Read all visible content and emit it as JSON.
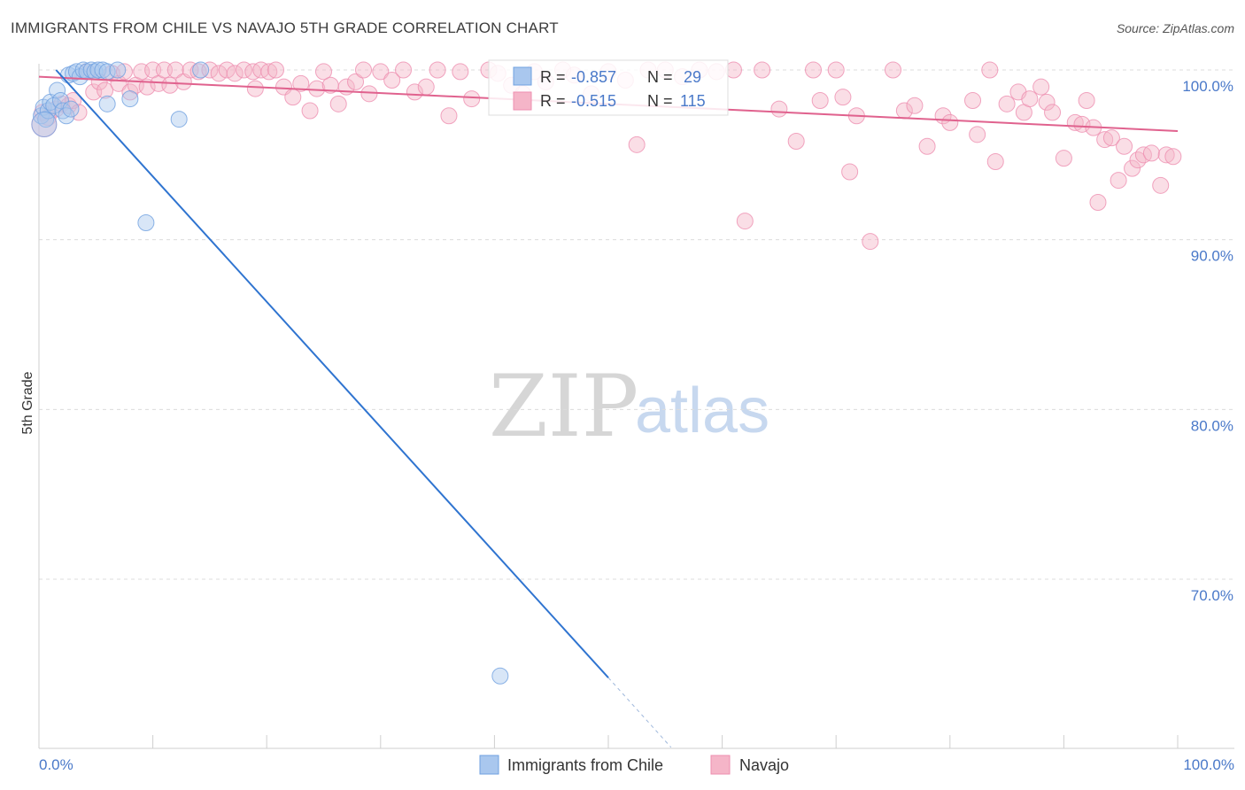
{
  "header": {
    "title": "IMMIGRANTS FROM CHILE VS NAVAJO 5TH GRADE CORRELATION CHART",
    "source": "Source: ZipAtlas.com"
  },
  "watermark": {
    "zip": "ZIP",
    "atlas": "atlas"
  },
  "legend": {
    "rows": [
      {
        "r_label": "R = ",
        "r_value": "-0.857",
        "n_label": "N = ",
        "n_value": "29",
        "color": "#a9c7ee"
      },
      {
        "r_label": "R = ",
        "r_value": "-0.515",
        "n_label": "N = ",
        "n_value": "115",
        "color": "#f5b5c8"
      }
    ]
  },
  "bottom_legend": [
    {
      "label": "Immigrants from Chile",
      "color": "#a9c7ee"
    },
    {
      "label": "Navajo",
      "color": "#f5b5c8"
    }
  ],
  "chart_data": {
    "type": "scatter",
    "title": "IMMIGRANTS FROM CHILE VS NAVAJO 5TH GRADE CORRELATION CHART",
    "xlabel": "",
    "ylabel": "5th Grade",
    "xlim": [
      0,
      100
    ],
    "ylim": [
      61.5,
      101.5
    ],
    "x_tick_labels": [
      "0.0%",
      "100.0%"
    ],
    "y_ticks": [
      70,
      80,
      90,
      100
    ],
    "y_tick_labels": [
      "70.0%",
      "80.0%",
      "90.0%",
      "100.0%"
    ],
    "grid": true,
    "series": [
      {
        "name": "Immigrants from Chile",
        "color": "#6fa0e0",
        "fill": "#a9c7ee",
        "line_color": "#2f74d0",
        "points": [
          [
            0.2,
            97.3
          ],
          [
            0.4,
            97.8
          ],
          [
            0.6,
            97.1
          ],
          [
            0.8,
            97.6
          ],
          [
            1.0,
            98.1
          ],
          [
            1.3,
            97.9
          ],
          [
            1.6,
            98.8
          ],
          [
            1.9,
            98.2
          ],
          [
            2.1,
            97.6
          ],
          [
            2.4,
            97.3
          ],
          [
            2.6,
            99.7
          ],
          [
            2.8,
            97.7
          ],
          [
            3.0,
            99.8
          ],
          [
            3.3,
            99.9
          ],
          [
            3.6,
            99.6
          ],
          [
            3.9,
            100.0
          ],
          [
            4.2,
            99.9
          ],
          [
            4.6,
            100.0
          ],
          [
            4.9,
            99.9
          ],
          [
            5.2,
            100.0
          ],
          [
            5.6,
            100.0
          ],
          [
            6.0,
            99.9
          ],
          [
            6.0,
            98.0
          ],
          [
            6.9,
            100.0
          ],
          [
            8.0,
            98.3
          ],
          [
            12.3,
            97.1
          ],
          [
            14.2,
            100.0
          ],
          [
            9.4,
            91.0
          ],
          [
            40.5,
            64.3
          ]
        ],
        "trend": {
          "x0": 1.5,
          "y0": 100.0,
          "x1": 50.0,
          "y1": 64.2,
          "dash_x1": 55.5,
          "dash_y1": 60.1
        },
        "big_points": [
          [
            0.3,
            97.0
          ]
        ]
      },
      {
        "name": "Navajo",
        "color": "#ee8fb0",
        "fill": "#f5b5c8",
        "line_color": "#e0628e",
        "points": [
          [
            0.3,
            97.5
          ],
          [
            0.8,
            97.2
          ],
          [
            1.5,
            97.7
          ],
          [
            2.0,
            98.0
          ],
          [
            2.6,
            97.9
          ],
          [
            3.0,
            98.2
          ],
          [
            3.5,
            97.5
          ],
          [
            4.2,
            99.9
          ],
          [
            4.8,
            98.7
          ],
          [
            5.3,
            99.3
          ],
          [
            5.8,
            98.8
          ],
          [
            6.4,
            99.8
          ],
          [
            7.0,
            99.2
          ],
          [
            7.5,
            99.9
          ],
          [
            8.0,
            98.7
          ],
          [
            8.5,
            99.1
          ],
          [
            9.0,
            99.9
          ],
          [
            9.5,
            99.0
          ],
          [
            10.0,
            100.0
          ],
          [
            10.5,
            99.2
          ],
          [
            11.0,
            100.0
          ],
          [
            11.5,
            99.1
          ],
          [
            12.0,
            100.0
          ],
          [
            12.7,
            99.3
          ],
          [
            13.3,
            100.0
          ],
          [
            14.0,
            99.9
          ],
          [
            15.0,
            100.0
          ],
          [
            15.8,
            99.8
          ],
          [
            16.5,
            100.0
          ],
          [
            17.2,
            99.8
          ],
          [
            18.0,
            100.0
          ],
          [
            18.8,
            99.9
          ],
          [
            19.5,
            100.0
          ],
          [
            19.0,
            98.9
          ],
          [
            20.2,
            99.9
          ],
          [
            20.8,
            100.0
          ],
          [
            21.5,
            99.0
          ],
          [
            22.3,
            98.4
          ],
          [
            23.0,
            99.2
          ],
          [
            23.8,
            97.6
          ],
          [
            24.4,
            98.9
          ],
          [
            25.0,
            99.9
          ],
          [
            25.6,
            99.1
          ],
          [
            26.3,
            98.0
          ],
          [
            27.0,
            99.0
          ],
          [
            27.8,
            99.3
          ],
          [
            28.5,
            100.0
          ],
          [
            29.0,
            98.6
          ],
          [
            30.0,
            99.9
          ],
          [
            31.0,
            99.4
          ],
          [
            32.0,
            100.0
          ],
          [
            33.0,
            98.7
          ],
          [
            34.0,
            99.0
          ],
          [
            35.0,
            100.0
          ],
          [
            36.0,
            97.3
          ],
          [
            37.0,
            99.9
          ],
          [
            38.0,
            98.3
          ],
          [
            39.5,
            100.0
          ],
          [
            40.3,
            99.8
          ],
          [
            41.5,
            99.1
          ],
          [
            42.5,
            98.6
          ],
          [
            43.5,
            99.9
          ],
          [
            44.5,
            99.3
          ],
          [
            46.0,
            100.0
          ],
          [
            47.0,
            99.7
          ],
          [
            48.5,
            98.6
          ],
          [
            50.0,
            99.9
          ],
          [
            51.5,
            99.4
          ],
          [
            52.5,
            95.6
          ],
          [
            53.5,
            100.0
          ],
          [
            55.0,
            100.0
          ],
          [
            56.5,
            99.6
          ],
          [
            58.0,
            100.0
          ],
          [
            59.5,
            99.9
          ],
          [
            61.0,
            100.0
          ],
          [
            62.0,
            91.1
          ],
          [
            63.5,
            100.0
          ],
          [
            65.0,
            97.7
          ],
          [
            66.5,
            95.8
          ],
          [
            68.0,
            100.0
          ],
          [
            68.6,
            98.2
          ],
          [
            70.0,
            100.0
          ],
          [
            70.6,
            98.4
          ],
          [
            71.2,
            94.0
          ],
          [
            71.8,
            97.3
          ],
          [
            73.0,
            89.9
          ],
          [
            75.0,
            100.0
          ],
          [
            76.0,
            97.6
          ],
          [
            76.9,
            97.9
          ],
          [
            78.0,
            95.5
          ],
          [
            79.4,
            97.3
          ],
          [
            80.0,
            96.9
          ],
          [
            82.0,
            98.2
          ],
          [
            82.4,
            96.2
          ],
          [
            83.5,
            100.0
          ],
          [
            84.0,
            94.6
          ],
          [
            85.0,
            98.0
          ],
          [
            86.0,
            98.7
          ],
          [
            86.5,
            97.5
          ],
          [
            87.0,
            98.3
          ],
          [
            88.0,
            99.0
          ],
          [
            88.5,
            98.1
          ],
          [
            89.0,
            97.5
          ],
          [
            90.0,
            94.8
          ],
          [
            91.0,
            96.9
          ],
          [
            91.6,
            96.8
          ],
          [
            92.0,
            98.2
          ],
          [
            92.6,
            96.6
          ],
          [
            93.0,
            92.2
          ],
          [
            93.6,
            95.9
          ],
          [
            94.2,
            96.0
          ],
          [
            94.8,
            93.5
          ],
          [
            95.3,
            95.5
          ],
          [
            96.0,
            94.2
          ],
          [
            96.5,
            94.7
          ],
          [
            97.0,
            95.0
          ],
          [
            97.7,
            95.1
          ],
          [
            98.5,
            93.2
          ],
          [
            99.0,
            95.0
          ],
          [
            99.6,
            94.9
          ]
        ],
        "trend": {
          "x0": 0.0,
          "y0": 99.6,
          "x1": 100.0,
          "y1": 96.4
        },
        "big_points": [
          [
            0.3,
            97.0
          ]
        ]
      }
    ]
  }
}
